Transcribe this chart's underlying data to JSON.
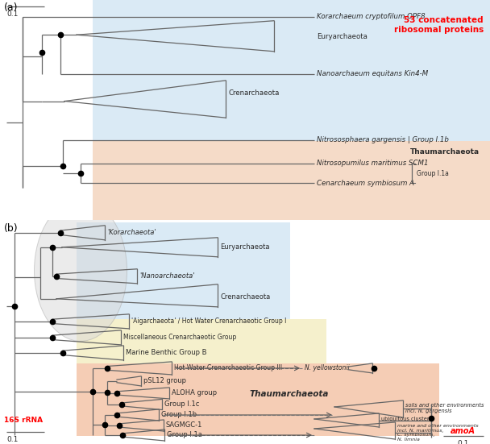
{
  "fig_width": 6.08,
  "fig_height": 5.51,
  "tc": "#666666",
  "lw": 0.9,
  "dot_size": 4.5,
  "panel_a": {
    "bg_blue": "#daeaf5",
    "bg_orange": "#f5dbc8",
    "label_53": "53 concatenated\nribosomal proteins",
    "label_thaum": "Thaumarchaeota",
    "label_group": "Group I.1a",
    "scale": "0.1",
    "fs": 6.2
  },
  "panel_b": {
    "bg_blue": "#daeaf5",
    "bg_yellow": "#f5f0cc",
    "bg_pink": "#f5cdb5",
    "ellipse_color": "#d8d8d8",
    "label_16s": "16S rRNA",
    "label_amoa": "amoA",
    "label_thaum": "Thaumarchaeota",
    "scale": "0.1",
    "scale2": "0.1",
    "fs": 6.0
  }
}
